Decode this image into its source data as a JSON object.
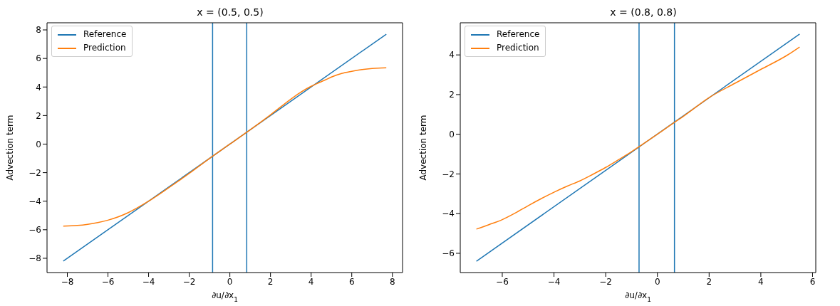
{
  "chart_data": [
    {
      "type": "line",
      "title": "x = (0.5, 0.5)",
      "xlabel": "∂u/∂x$_{1}$",
      "ylabel": "Advection term",
      "xlim": [
        -9.0,
        8.5
      ],
      "ylim": [
        -9.0,
        8.5
      ],
      "xticks": [
        -8,
        -6,
        -4,
        -2,
        0,
        2,
        4,
        6,
        8
      ],
      "yticks": [
        -8,
        -6,
        -4,
        -2,
        0,
        2,
        4,
        6,
        8
      ],
      "legend": "top left",
      "series": [
        {
          "name": "Reference",
          "color": "#1f77b4",
          "x": [
            -8.2,
            7.7
          ],
          "values": [
            -8.2,
            7.7
          ]
        },
        {
          "name": "Prediction",
          "color": "#ff7f0e",
          "x": [
            -8.2,
            -7.5,
            -7,
            -6.5,
            -6,
            -5.5,
            -5,
            -4.5,
            -4,
            -3,
            -2,
            -1,
            0,
            1,
            2,
            3,
            3.5,
            4,
            4.3,
            4.7,
            5,
            5.5,
            6,
            6.5,
            7,
            7.7
          ],
          "values": [
            -5.75,
            -5.7,
            -5.62,
            -5.5,
            -5.33,
            -5.1,
            -4.8,
            -4.42,
            -4.0,
            -3.05,
            -2.05,
            -1.0,
            0,
            1.0,
            2.05,
            3.15,
            3.65,
            4.05,
            4.25,
            4.5,
            4.7,
            4.95,
            5.1,
            5.22,
            5.3,
            5.35
          ]
        }
      ],
      "ref_lines": [
        {
          "axis": "x",
          "value": -0.85,
          "color": "#1f77b4"
        },
        {
          "axis": "x",
          "value": 0.83,
          "color": "#1f77b4"
        }
      ]
    },
    {
      "type": "line",
      "title": "x = (0.8, 0.8)",
      "xlabel": "∂u/∂x$_{1}$",
      "ylabel": "Advection term",
      "xlim": [
        -7.625,
        6.125
      ],
      "ylim": [
        -6.97,
        5.62
      ],
      "xticks": [
        -6,
        -4,
        -2,
        0,
        2,
        4,
        6
      ],
      "yticks": [
        -6,
        -4,
        -2,
        0,
        2,
        4
      ],
      "legend": "top left",
      "series": [
        {
          "name": "Reference",
          "color": "#1f77b4",
          "x": [
            -7.0,
            5.5
          ],
          "values": [
            -6.4,
            5.05
          ]
        },
        {
          "name": "Prediction",
          "color": "#ff7f0e",
          "x": [
            -7,
            -6.5,
            -6,
            -5.5,
            -5,
            -4.5,
            -4,
            -3.5,
            -3,
            -2.5,
            -2,
            -1.5,
            -1,
            -0.7,
            0,
            0.66,
            1,
            2,
            3,
            4,
            5,
            5.5
          ],
          "values": [
            -4.78,
            -4.55,
            -4.3,
            -3.97,
            -3.6,
            -3.25,
            -2.92,
            -2.62,
            -2.35,
            -2.02,
            -1.67,
            -1.28,
            -0.88,
            -0.62,
            0,
            0.6,
            0.9,
            1.85,
            2.57,
            3.27,
            3.97,
            4.4
          ]
        }
      ],
      "ref_lines": [
        {
          "axis": "x",
          "value": -0.71,
          "color": "#1f77b4"
        },
        {
          "axis": "x",
          "value": 0.66,
          "color": "#1f77b4"
        }
      ]
    }
  ]
}
